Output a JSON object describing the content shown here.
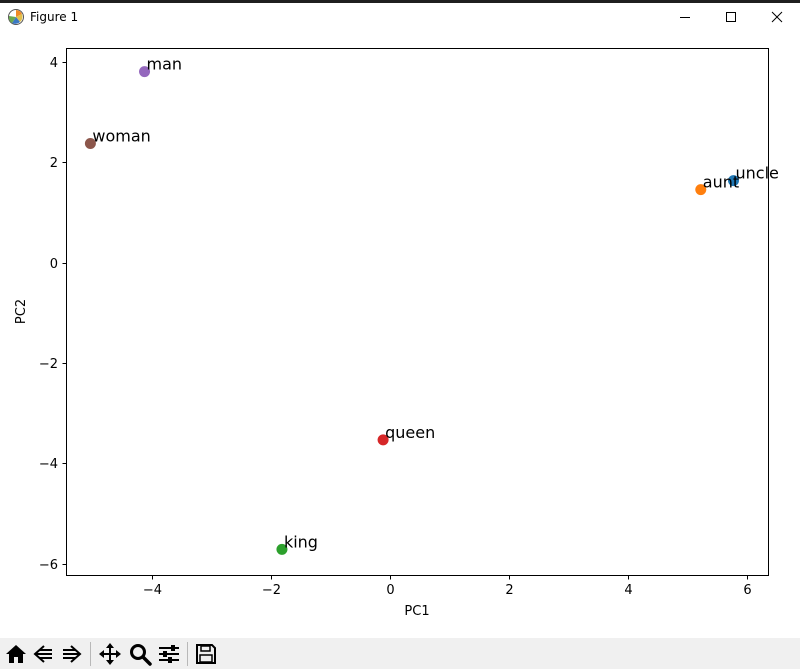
{
  "window": {
    "title": "Figure 1",
    "controls": [
      "minimize-icon",
      "maximize-icon",
      "close-icon"
    ]
  },
  "toolbar": {
    "buttons": [
      "home-icon",
      "back-icon",
      "forward-icon",
      "pan-icon",
      "zoom-icon",
      "configure-subplots-icon",
      "save-icon"
    ]
  },
  "chart_data": {
    "type": "scatter",
    "title": "",
    "xlabel": "PC1",
    "ylabel": "PC2",
    "xlim": [
      -5.45,
      6.35
    ],
    "ylim": [
      -6.22,
      4.27
    ],
    "xticks": [
      -4,
      -2,
      0,
      2,
      4,
      6
    ],
    "yticks": [
      -6,
      -4,
      -2,
      0,
      2,
      4
    ],
    "grid": false,
    "points": [
      {
        "label": "uncle",
        "x": 5.77,
        "y": 1.63,
        "color": "#1f77b4"
      },
      {
        "label": "aunt",
        "x": 5.22,
        "y": 1.45,
        "color": "#ff7f0e"
      },
      {
        "label": "king",
        "x": -1.82,
        "y": -5.71,
        "color": "#2ca02c"
      },
      {
        "label": "queen",
        "x": -0.12,
        "y": -3.53,
        "color": "#d62728"
      },
      {
        "label": "man",
        "x": -4.13,
        "y": 3.8,
        "color": "#9467bd"
      },
      {
        "label": "woman",
        "x": -5.04,
        "y": 2.37,
        "color": "#8c564b"
      }
    ]
  }
}
